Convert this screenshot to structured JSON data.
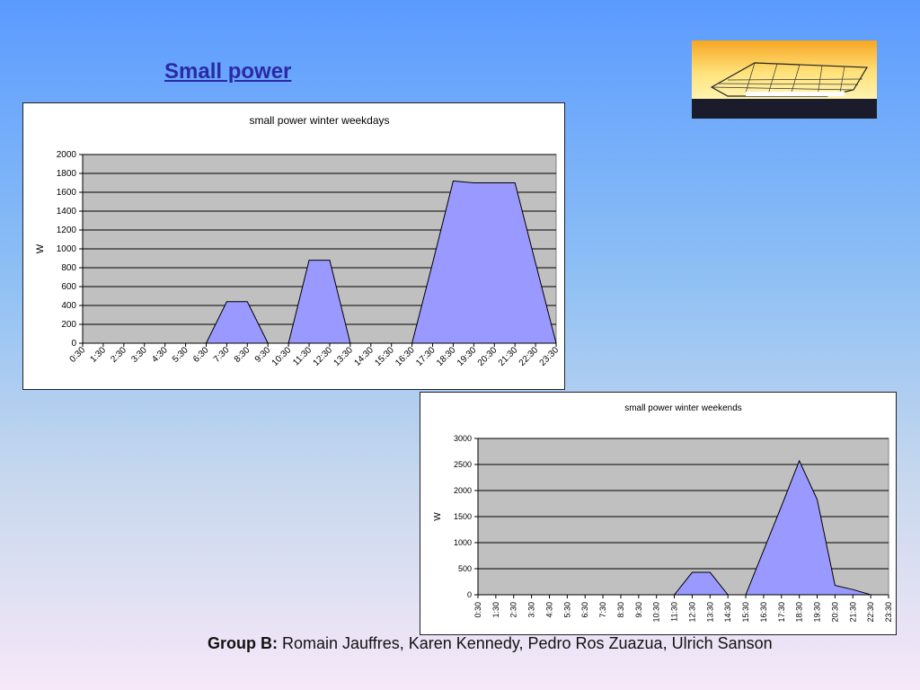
{
  "slide": {
    "title": "Small power",
    "footer_group": "Group B:",
    "footer_names": " Romain Jauffres, Karen Kennedy, Pedro Ros Zuazua, Ulrich Sanson"
  },
  "logo": {
    "icon": "building-sunset-logo"
  },
  "colors": {
    "fill": "#9999ff",
    "plot_bg": "#c0c0c0",
    "grid": "#000000"
  },
  "chart_data": [
    {
      "type": "area",
      "title": "small power winter weekdays",
      "ylabel": "W",
      "xlabel": "",
      "ylim": [
        0,
        2000
      ],
      "yticks": [
        0,
        200,
        400,
        600,
        800,
        1000,
        1200,
        1400,
        1600,
        1800,
        2000
      ],
      "categories": [
        "0:30",
        "1:30",
        "2:30",
        "3:30",
        "4:30",
        "5:30",
        "6:30",
        "7:30",
        "8:30",
        "9:30",
        "10:30",
        "11:30",
        "12:30",
        "13:30",
        "14:30",
        "15:30",
        "16:30",
        "17:30",
        "18:30",
        "19:30",
        "20:30",
        "21:30",
        "22:30",
        "23:30"
      ],
      "values": [
        0,
        0,
        0,
        0,
        0,
        0,
        0,
        440,
        440,
        0,
        0,
        880,
        880,
        0,
        0,
        0,
        0,
        850,
        1720,
        1700,
        1700,
        1700,
        850,
        0
      ],
      "grid": true,
      "legend": "none"
    },
    {
      "type": "area",
      "title": "small power winter weekends",
      "ylabel": "W",
      "xlabel": "",
      "ylim": [
        0,
        3000
      ],
      "yticks": [
        0,
        500,
        1000,
        1500,
        2000,
        2500,
        3000
      ],
      "categories": [
        "0:30",
        "1:30",
        "2:30",
        "3:30",
        "4:30",
        "5:30",
        "6:30",
        "7:30",
        "8:30",
        "9:30",
        "10:30",
        "11:30",
        "12:30",
        "13:30",
        "14:30",
        "15:30",
        "16:30",
        "17:30",
        "18:30",
        "19:30",
        "20:30",
        "21:30",
        "22:30",
        "23:30"
      ],
      "values": [
        0,
        0,
        0,
        0,
        0,
        0,
        0,
        0,
        0,
        0,
        0,
        0,
        430,
        430,
        0,
        0,
        850,
        1700,
        2570,
        1830,
        180,
        100,
        0,
        0
      ],
      "grid": true,
      "legend": "none"
    }
  ]
}
